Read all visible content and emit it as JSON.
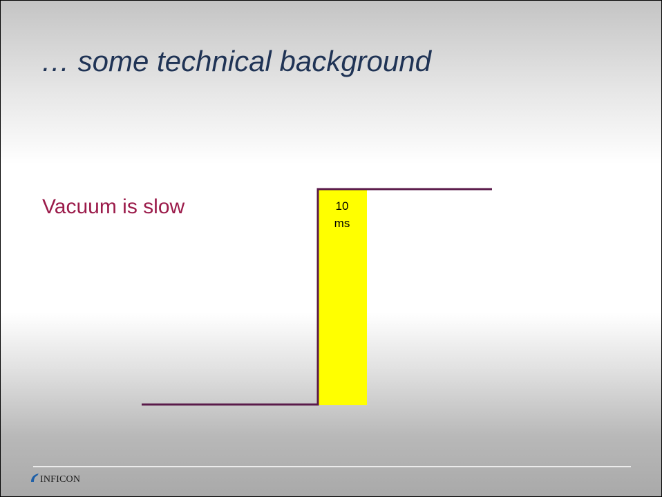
{
  "title": "… some technical background",
  "body_text": "Vacuum is slow",
  "box_label": "10 ms",
  "logo": "INFICON"
}
